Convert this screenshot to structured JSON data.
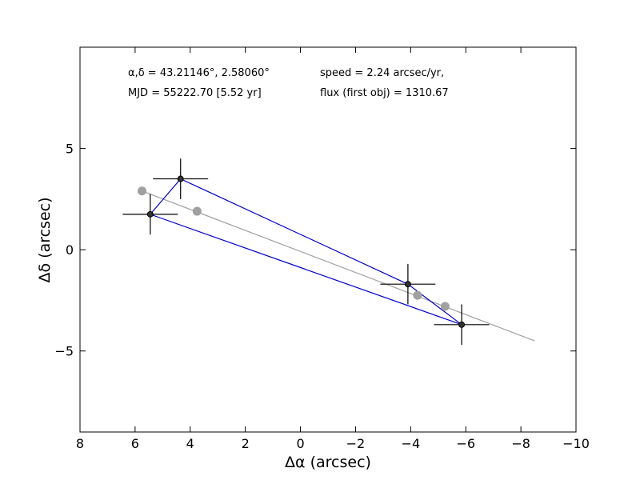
{
  "chart_data": {
    "type": "scatter",
    "title": "",
    "xlabel": "Δα (arcsec)",
    "ylabel": "Δδ (arcsec)",
    "xlim": [
      8,
      -10
    ],
    "ylim": [
      -9,
      10
    ],
    "x_ticks": [
      8,
      6,
      4,
      2,
      0,
      -2,
      -4,
      -6,
      -8,
      -10
    ],
    "y_ticks": [
      -5,
      0,
      5
    ],
    "x_tick_labels": [
      "8",
      "6",
      "4",
      "2",
      "0",
      "−2",
      "−4",
      "−6",
      "−8",
      "−10"
    ],
    "y_tick_labels": [
      "−5",
      "0",
      "5"
    ],
    "grid": false,
    "annotations": {
      "coords": "α,δ = 43.21146°, 2.58060°",
      "mjd": "MJD = 55222.70 [5.52 yr]",
      "speed": "speed = 2.24 arcsec/yr,",
      "flux": "flux (first obj) = 1310.67"
    },
    "series": [
      {
        "kind": "measured",
        "color": "#000000",
        "line_color": "#0000cc",
        "points": [
          {
            "x": 5.45,
            "y": 1.75,
            "xerr": 1.0,
            "yerr": 1.0
          },
          {
            "x": 4.35,
            "y": 3.5,
            "xerr": 1.0,
            "yerr": 1.0
          },
          {
            "x": -3.9,
            "y": -1.7,
            "xerr": 1.0,
            "yerr": 1.0
          },
          {
            "x": -5.85,
            "y": -3.7,
            "xerr": 1.0,
            "yerr": 1.0
          }
        ]
      },
      {
        "kind": "predicted",
        "color": "#a0a0a0",
        "points": [
          {
            "x": 5.75,
            "y": 2.9
          },
          {
            "x": 3.75,
            "y": 1.9
          },
          {
            "x": -4.25,
            "y": -2.25
          },
          {
            "x": -5.25,
            "y": -2.8
          }
        ]
      }
    ],
    "fit_line": {
      "color": "#a0a0a0",
      "from": {
        "x": 5.75,
        "y": 2.9
      },
      "to": {
        "x": -8.5,
        "y": -4.5
      }
    }
  }
}
